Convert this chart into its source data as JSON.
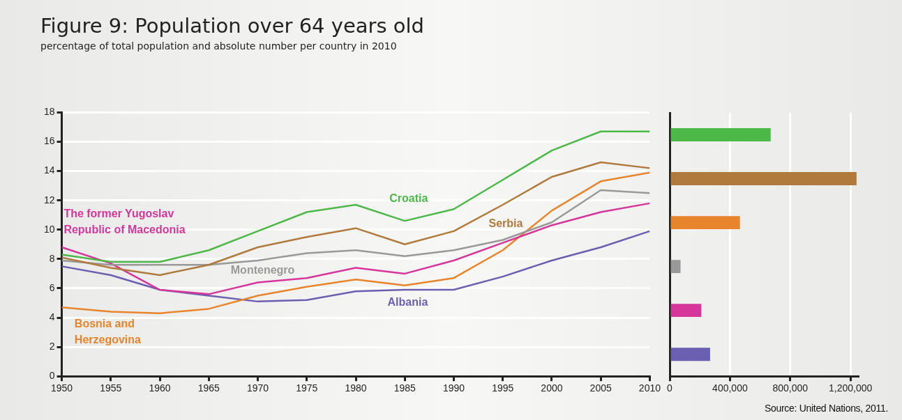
{
  "chart_data": [
    {
      "type": "line",
      "title": "Figure 9: Population over 64 years old",
      "subtitle": "percentage of total population and absolute number per country in 2010",
      "x": [
        1950,
        1955,
        1960,
        1965,
        1970,
        1975,
        1980,
        1985,
        1990,
        1995,
        2000,
        2005,
        2010
      ],
      "xlim": [
        1950,
        2010
      ],
      "xticks": [
        1950,
        1955,
        1960,
        1965,
        1970,
        1975,
        1980,
        1985,
        1990,
        1995,
        2000,
        2005,
        2010
      ],
      "ylim": [
        0,
        18
      ],
      "yticks": [
        0,
        2,
        4,
        6,
        8,
        10,
        12,
        14,
        16,
        18
      ],
      "grid": "y",
      "marker": "none",
      "series": [
        {
          "name": "Croatia",
          "color": "#4cb848",
          "values": [
            8.3,
            7.8,
            7.8,
            8.6,
            9.9,
            11.2,
            11.7,
            10.6,
            11.4,
            13.4,
            15.4,
            16.7,
            16.7
          ]
        },
        {
          "name": "Serbia",
          "color": "#b07a3c",
          "values": [
            8.1,
            7.4,
            6.9,
            7.6,
            8.8,
            9.5,
            10.1,
            9.0,
            9.9,
            11.7,
            13.6,
            14.6,
            14.2
          ]
        },
        {
          "name": "Montenegro",
          "color": "#999999",
          "values": [
            7.9,
            7.6,
            7.6,
            7.6,
            7.9,
            8.4,
            8.6,
            8.2,
            8.6,
            9.3,
            10.5,
            12.7,
            12.5
          ]
        },
        {
          "name": "The former Yugoslav Republic of Macedonia",
          "color": "#d6359a",
          "values": [
            8.8,
            7.7,
            5.9,
            5.6,
            6.4,
            6.7,
            7.4,
            7.0,
            7.9,
            9.1,
            10.3,
            11.2,
            11.8
          ]
        },
        {
          "name": "Bosnia and Herzegovina",
          "color": "#e8842c",
          "values": [
            4.7,
            4.4,
            4.3,
            4.6,
            5.5,
            6.1,
            6.6,
            6.2,
            6.7,
            8.6,
            11.3,
            13.3,
            13.9
          ]
        },
        {
          "name": "Albania",
          "color": "#6a5fb0",
          "values": [
            7.5,
            6.9,
            5.9,
            5.5,
            5.1,
            5.2,
            5.8,
            5.9,
            5.9,
            6.8,
            7.9,
            8.8,
            9.9
          ]
        }
      ]
    },
    {
      "type": "bar",
      "orientation": "horizontal",
      "categories": [
        null,
        null,
        null,
        null,
        null,
        null
      ],
      "values": [
        670000,
        1240000,
        466000,
        72000,
        210000,
        268000
      ],
      "colors": [
        "#4cb848",
        "#b07a3c",
        "#e8842c",
        "#999999",
        "#d6359a",
        "#6a5fb0"
      ],
      "xlim": [
        0,
        1250000
      ],
      "xticks": [
        0,
        {
          "value": 400000,
          "label": "400,000"
        },
        {
          "value": 800000,
          "label": "800,000"
        },
        {
          "value": 1200000,
          "label": "1,200,000"
        }
      ],
      "grid": "x",
      "tick_labels": "x",
      "annotations": [
        "Source: United Nations, 2011."
      ]
    }
  ]
}
